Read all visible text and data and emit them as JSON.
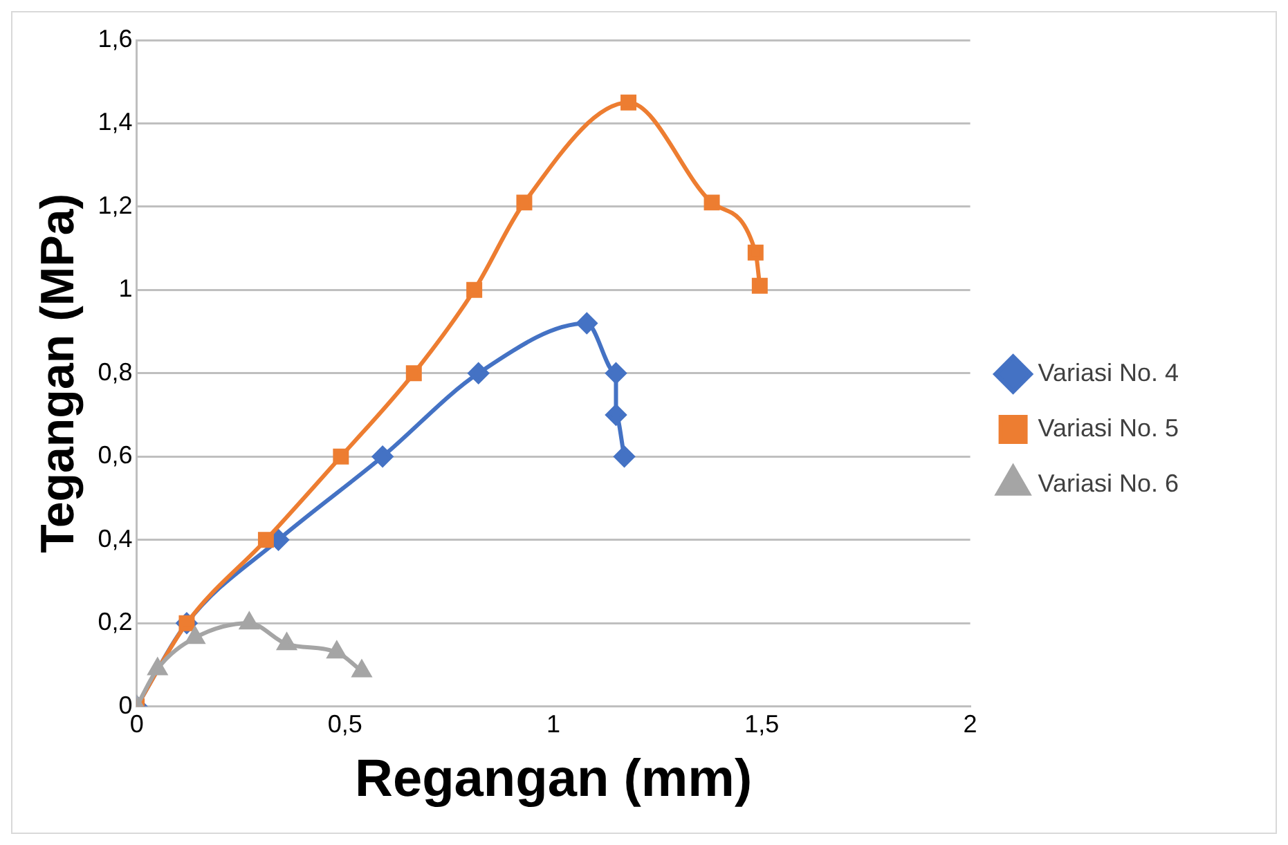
{
  "chart_data": {
    "type": "line",
    "xlabel": "Regangan (mm)",
    "ylabel": "Tegangan (MPa)",
    "xlim": [
      0,
      2
    ],
    "xticks": [
      0,
      {
        "value": 0.5,
        "label": "0,5"
      },
      1,
      {
        "value": 1.5,
        "label": "1,5"
      },
      2
    ],
    "ylim": [
      0,
      1.6
    ],
    "yticks": [
      0,
      {
        "value": 0.2,
        "label": "0,2"
      },
      {
        "value": 0.4,
        "label": "0,4"
      },
      {
        "value": 0.6,
        "label": "0,6"
      },
      {
        "value": 0.8,
        "label": "0,8"
      },
      1,
      {
        "value": 1.2,
        "label": "1,2"
      },
      {
        "value": 1.4,
        "label": "1,4"
      },
      {
        "value": 1.6,
        "label": "1,6"
      }
    ],
    "grid": "y",
    "legend": "right",
    "line_style": "solid",
    "series": [
      {
        "name": "Variasi No. 4",
        "color": "#4472c4",
        "marker": "diamond",
        "x": [
          0,
          0.12,
          0.34,
          0.59,
          0.82,
          1.08,
          1.15,
          1.15,
          1.17
        ],
        "values": [
          0,
          0.2,
          0.4,
          0.6,
          0.8,
          0.92,
          0.8,
          0.7,
          0.6
        ]
      },
      {
        "name": "Variasi No. 5",
        "color": "#ed7d31",
        "marker": "square",
        "x": [
          0,
          0.12,
          0.31,
          0.49,
          0.665,
          0.81,
          0.93,
          1.18,
          1.38,
          1.485,
          1.495
        ],
        "values": [
          0,
          0.2,
          0.4,
          0.6,
          0.8,
          1.0,
          1.21,
          1.45,
          1.21,
          1.09,
          1.01
        ]
      },
      {
        "name": "Variasi No. 6",
        "color": "#a5a5a5",
        "marker": "triangle",
        "x": [
          0,
          0.05,
          0.14,
          0.27,
          0.36,
          0.48,
          0.54
        ],
        "values": [
          0,
          0.09,
          0.165,
          0.2,
          0.15,
          0.13,
          0.085
        ]
      }
    ]
  }
}
